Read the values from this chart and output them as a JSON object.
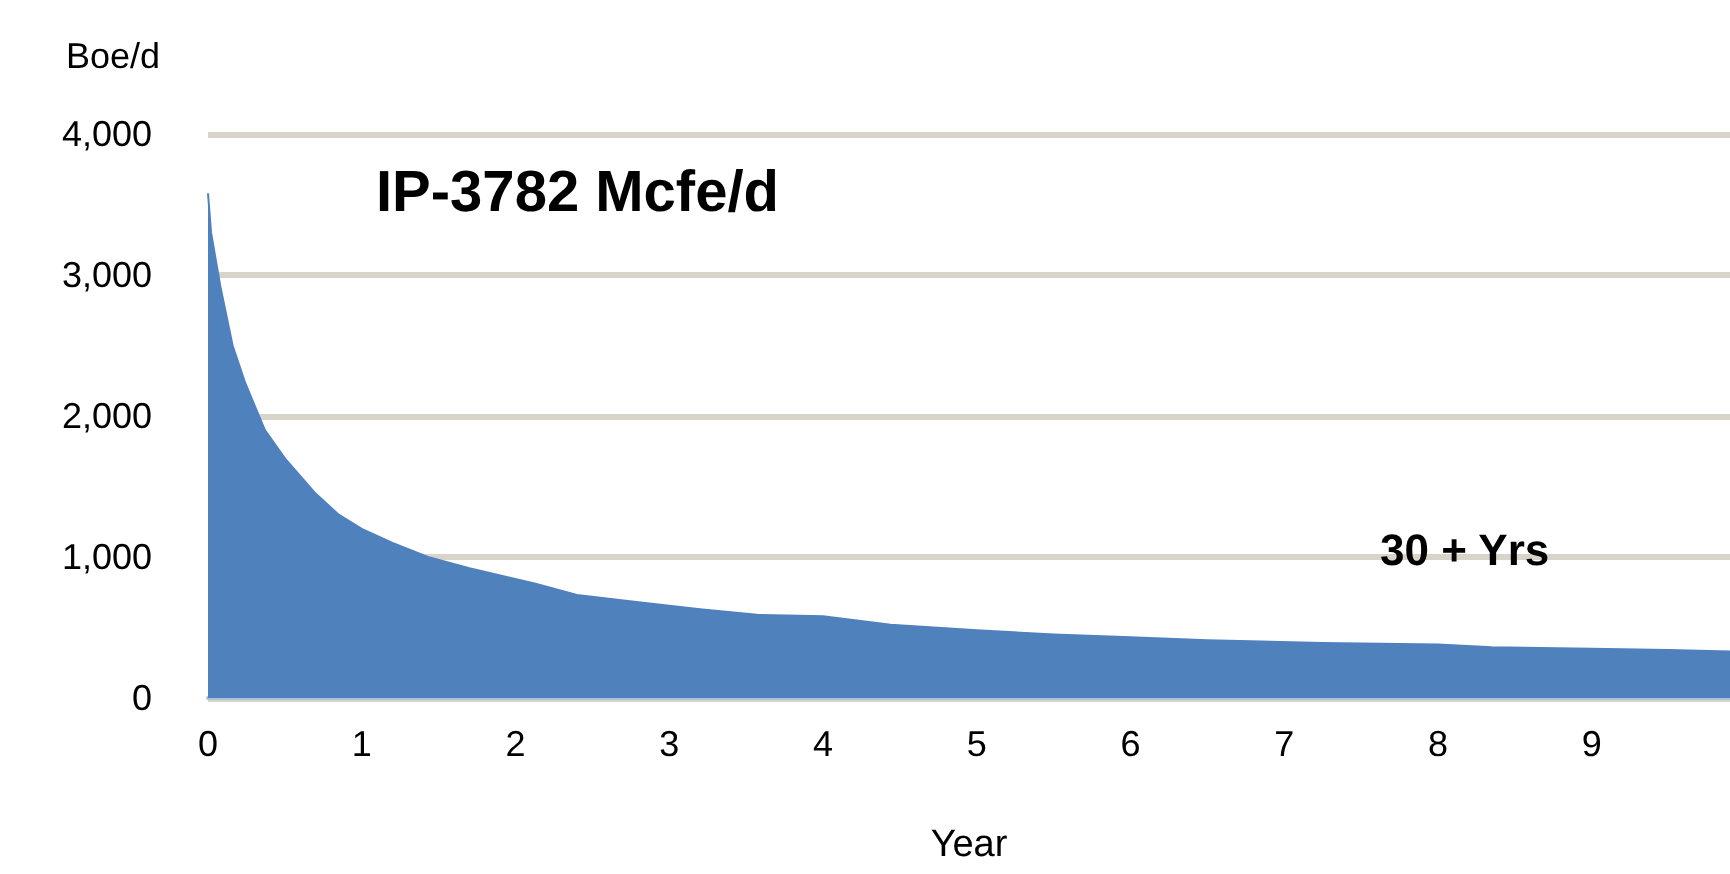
{
  "chart_data": {
    "type": "area",
    "ylabel": "Boe/d",
    "xlabel": "Year",
    "annotations": [
      "IP-3782 Mcfe/d",
      "30 + Yrs"
    ],
    "x": [
      0,
      0.02,
      0.08,
      0.16,
      0.24,
      0.37,
      0.5,
      0.7,
      0.85,
      1,
      1.2,
      1.43,
      1.7,
      2.13,
      2.4,
      2.8,
      3.2,
      3.57,
      4.0,
      4.44,
      5.0,
      5.5,
      6.0,
      6.5,
      7.25,
      8.0,
      8.35,
      9.0,
      9.5,
      9.9
    ],
    "series": [
      {
        "color": "#4f81bd",
        "values": [
          3580,
          3300,
          2920,
          2500,
          2240,
          1900,
          1700,
          1450,
          1300,
          1200,
          1100,
          1000,
          920,
          810,
          730,
          680,
          630,
          590,
          580,
          520,
          480,
          450,
          430,
          410,
          390,
          380,
          360,
          350,
          340,
          330
        ]
      }
    ],
    "xlim": [
      0,
      9.9
    ],
    "xticks": [
      0,
      1,
      2,
      3,
      4,
      5,
      6,
      7,
      8,
      9
    ],
    "ylim": [
      0,
      4000
    ],
    "yticks": [
      0,
      {
        "value": 1000,
        "label": "1,000"
      },
      {
        "value": 2000,
        "label": "2,000"
      },
      {
        "value": 3000,
        "label": "3,000"
      },
      {
        "value": 4000,
        "label": "4,000"
      }
    ],
    "grid": "y",
    "marker": "none",
    "line_style": "solid"
  }
}
